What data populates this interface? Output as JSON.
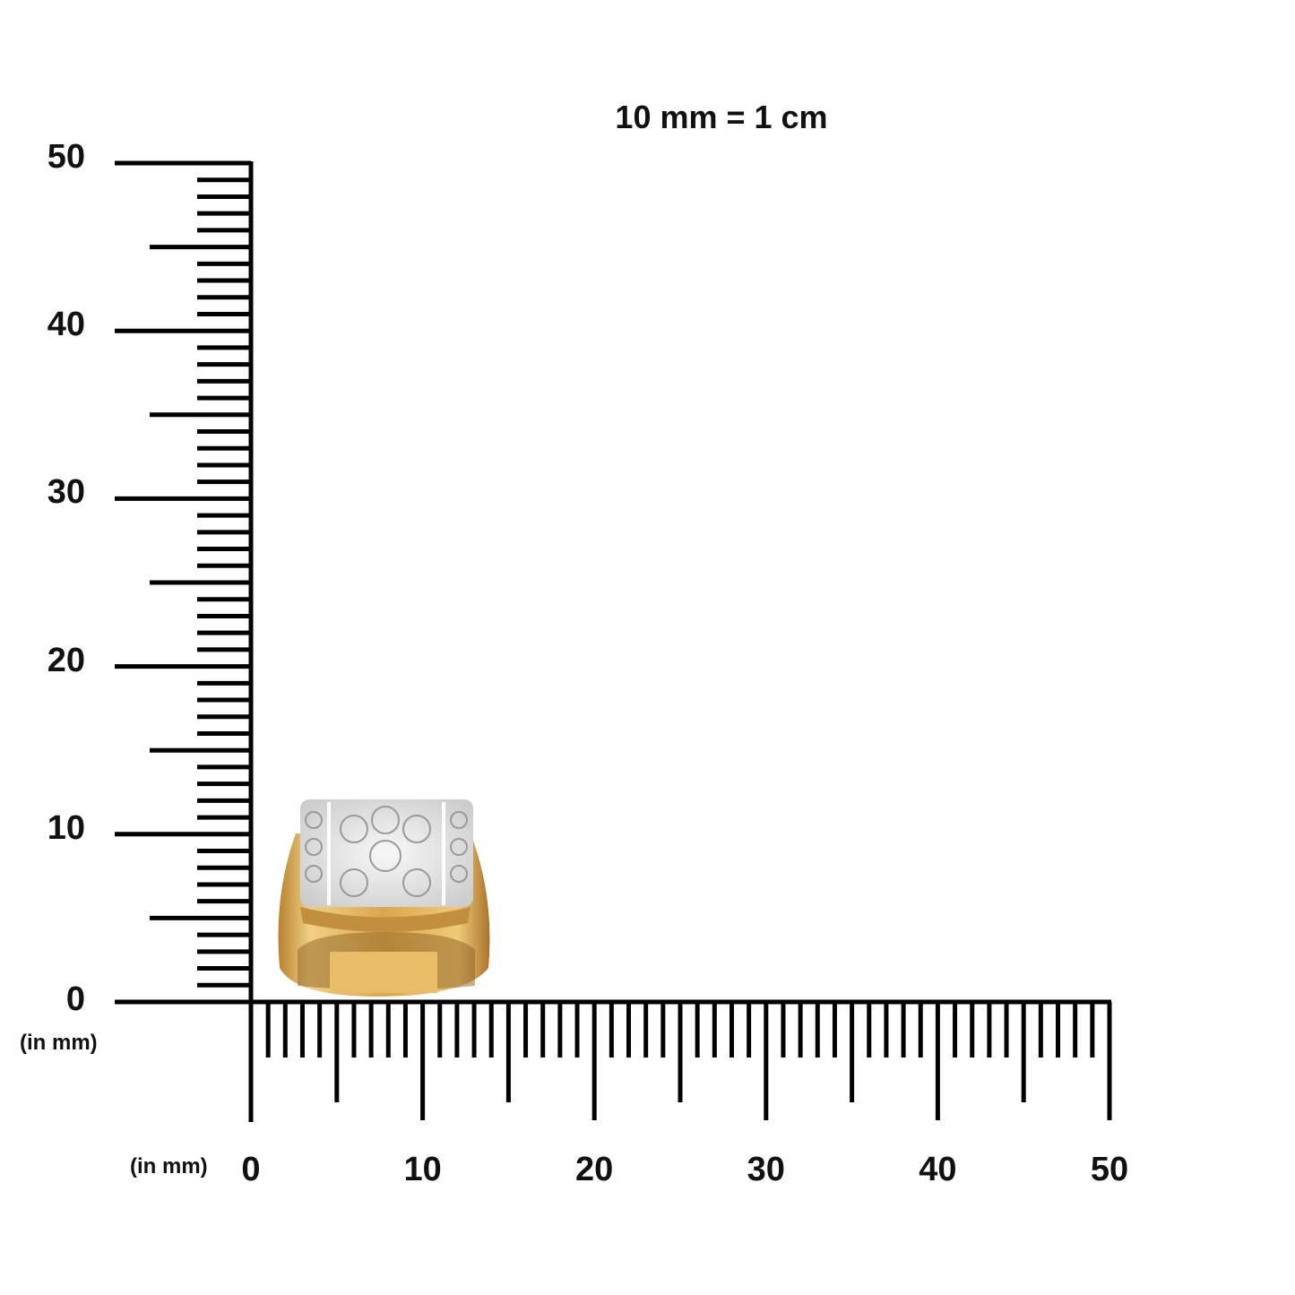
{
  "title": "10 mm = 1 cm",
  "vertical_ruler": {
    "unit_label": "(in mm)",
    "labels": [
      "0",
      "10",
      "20",
      "30",
      "40",
      "50"
    ],
    "range_mm": [
      0,
      50
    ]
  },
  "horizontal_ruler": {
    "unit_label": "(in mm)",
    "labels": [
      "0",
      "10",
      "20",
      "30",
      "40",
      "50"
    ],
    "range_mm": [
      0,
      50
    ]
  },
  "product": {
    "type": "ring",
    "metal_color": "#d9a84e",
    "stone_color": "#e8e8e8"
  }
}
